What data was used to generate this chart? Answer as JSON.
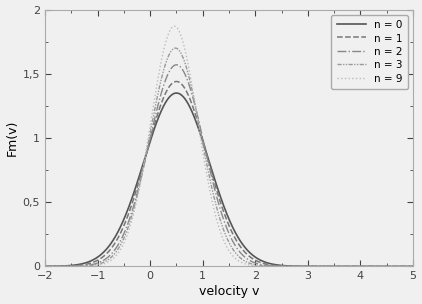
{
  "title": "",
  "xlabel": "velocity v",
  "ylabel": "Fm(v)",
  "xlim": [
    -2,
    5
  ],
  "ylim": [
    0,
    2
  ],
  "xticks": [
    -2,
    -1,
    0,
    1,
    2,
    3,
    4,
    5
  ],
  "yticks": [
    0,
    0.5,
    1,
    1.5,
    2
  ],
  "ytick_labels": [
    "0",
    "0,5",
    "1",
    "1,5",
    "2"
  ],
  "background_color": "#f0f0f0",
  "plot_bg_color": "#f0f0f0",
  "figsize": [
    4.22,
    3.04
  ],
  "dpi": 100,
  "series": [
    {
      "n": 0,
      "linestyle": "solid",
      "linewidth": 1.2,
      "color": "#555555",
      "A": 1.35,
      "mu": 0.5,
      "sigma": 0.62
    },
    {
      "n": 1,
      "linestyle": "dashed",
      "linewidth": 1.1,
      "color": "#777777",
      "A": 1.44,
      "mu": 0.5,
      "sigma": 0.575
    },
    {
      "n": 2,
      "linestyle": "dashdot",
      "linewidth": 1.0,
      "color": "#888888",
      "A": 1.57,
      "mu": 0.5,
      "sigma": 0.525
    },
    {
      "n": 3,
      "linestyle": "dashdotdot",
      "linewidth": 1.0,
      "color": "#999999",
      "A": 1.7,
      "mu": 0.48,
      "sigma": 0.485
    },
    {
      "n": 9,
      "linestyle": "dotted",
      "linewidth": 1.0,
      "color": "#bbbbbb",
      "A": 1.87,
      "mu": 0.46,
      "sigma": 0.445
    }
  ]
}
